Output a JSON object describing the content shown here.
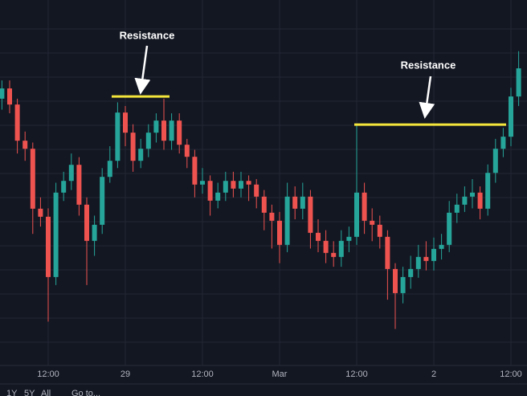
{
  "chart_data": {
    "type": "candlestick",
    "categories": [
      null,
      null,
      null,
      null,
      null,
      null,
      "12:00",
      null,
      null,
      null,
      null,
      null,
      null,
      null,
      null,
      null,
      "29",
      null,
      null,
      null,
      null,
      null,
      null,
      null,
      null,
      null,
      "12:00",
      null,
      null,
      null,
      null,
      null,
      null,
      null,
      null,
      null,
      "Mar",
      null,
      null,
      null,
      null,
      null,
      null,
      null,
      null,
      null,
      "12:00",
      null,
      null,
      null,
      null,
      null,
      null,
      null,
      null,
      null,
      "2",
      null,
      null,
      null,
      null,
      null,
      null,
      null,
      null,
      null,
      "12:00",
      null
    ],
    "open": [
      73,
      75.8,
      71.4,
      61.5,
      59.3,
      42.9,
      40.7,
      24.2,
      47.3,
      50.5,
      54.9,
      44.0,
      34.1,
      38.5,
      51.6,
      56.0,
      69.2,
      63.7,
      56.0,
      59.3,
      63.7,
      67.0,
      61.5,
      67.0,
      60.4,
      57.1,
      49.5,
      50.5,
      45.1,
      47.3,
      50.5,
      48.4,
      50.5,
      49.5,
      46.2,
      41.8,
      39.6,
      33.0,
      46.2,
      42.9,
      46.2,
      36.3,
      34.1,
      30.8,
      29.7,
      34.1,
      35.2,
      47.3,
      39.6,
      38.5,
      35.2,
      26.4,
      19.8,
      24.2,
      26.4,
      29.7,
      28.6,
      31.9,
      33.0,
      41.8,
      44.0,
      46.2,
      47.3,
      42.9,
      52.7,
      59.3,
      62.6,
      73.6
    ],
    "high": [
      78,
      78,
      73,
      64,
      61,
      46,
      43,
      50,
      53,
      58,
      57,
      46,
      41,
      54,
      60,
      72,
      71,
      66,
      62,
      66,
      69,
      73,
      69,
      69,
      62,
      59,
      54,
      52,
      50,
      53,
      53,
      53,
      52,
      51,
      48,
      44,
      42,
      50,
      49,
      50,
      48,
      40,
      37,
      34,
      37,
      38,
      66,
      50,
      43,
      41,
      37,
      28,
      27,
      30,
      33,
      34,
      35,
      36,
      45,
      47,
      49,
      51,
      49,
      55,
      62,
      65,
      76,
      86
    ],
    "low": [
      70,
      69,
      58,
      56,
      36,
      38,
      12,
      22,
      45,
      48,
      41,
      22,
      30,
      36,
      50,
      54,
      60,
      53,
      54,
      57,
      61,
      59,
      59,
      58,
      54,
      46,
      47,
      41,
      43,
      45,
      46,
      46,
      45,
      43,
      37,
      32,
      28,
      31,
      40,
      40,
      32,
      31,
      28,
      27,
      27,
      31,
      33,
      36,
      34,
      32,
      18,
      10,
      17,
      21,
      24,
      26,
      26,
      29,
      31,
      39,
      42,
      43,
      40,
      41,
      50,
      57,
      60,
      71
    ],
    "close": [
      75.8,
      71.4,
      61.5,
      59.3,
      42.9,
      40.7,
      24.2,
      47.3,
      50.5,
      54.9,
      44.0,
      34.1,
      38.5,
      51.6,
      56.0,
      69.2,
      63.7,
      56.0,
      59.3,
      63.7,
      67.0,
      61.5,
      67.0,
      60.4,
      57.1,
      49.5,
      50.5,
      45.1,
      47.3,
      50.5,
      48.4,
      50.5,
      49.5,
      46.2,
      41.8,
      39.6,
      33.0,
      46.2,
      42.9,
      46.2,
      36.3,
      34.1,
      30.8,
      29.7,
      34.1,
      35.2,
      47.3,
      39.6,
      38.5,
      35.2,
      26.4,
      19.8,
      24.2,
      26.4,
      29.7,
      28.6,
      31.9,
      33.0,
      41.8,
      44.0,
      46.2,
      47.3,
      42.9,
      52.7,
      59.3,
      62.6,
      73.6,
      81.3
    ],
    "up_color": "#26a69a",
    "down_color": "#ef5350",
    "ylim": [
      0,
      100
    ],
    "annotations": [
      {
        "text": "Resistance",
        "value": 73.6,
        "color": "#f5e63c"
      },
      {
        "text": "Resistance",
        "value": 65.9,
        "color": "#f5e63c"
      }
    ]
  },
  "toolbar": [
    "1Y",
    "5Y",
    "All",
    "Go to..."
  ]
}
